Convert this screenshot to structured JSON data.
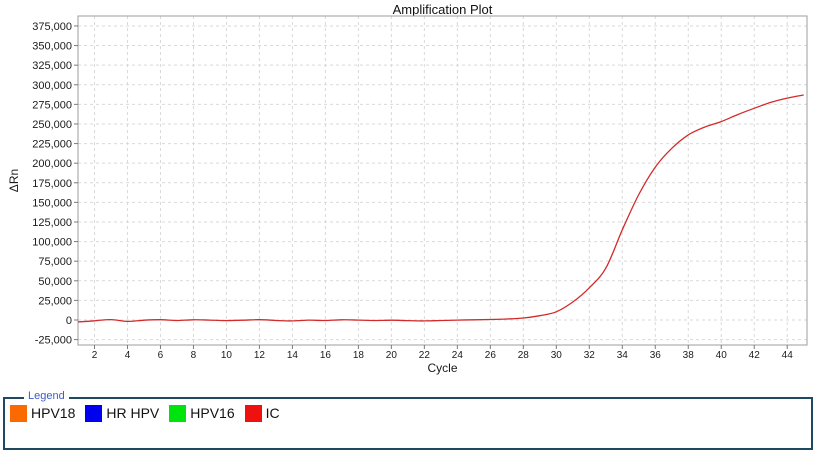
{
  "chart": {
    "title": "Amplification Plot"
  },
  "chart_data": {
    "type": "line",
    "title": "Amplification Plot",
    "xlabel": "Cycle",
    "ylabel": "ΔRn",
    "xlim": [
      1,
      45.2
    ],
    "ylim": [
      -31900,
      387700
    ],
    "x_ticks": [
      2,
      4,
      6,
      8,
      10,
      12,
      14,
      16,
      18,
      20,
      22,
      24,
      26,
      28,
      30,
      32,
      34,
      36,
      38,
      40,
      42,
      44
    ],
    "y_ticks": [
      375000,
      350000,
      325000,
      300000,
      275000,
      250000,
      225000,
      200000,
      175000,
      150000,
      125000,
      100000,
      75000,
      50000,
      25000,
      0,
      -25000
    ],
    "grid": true,
    "legend_position": "bottom",
    "series": [
      {
        "name": "IC",
        "color": "#d32a2a",
        "x": [
          1,
          2,
          3,
          4,
          5,
          6,
          7,
          8,
          9,
          10,
          11,
          12,
          13,
          14,
          15,
          16,
          17,
          18,
          19,
          20,
          21,
          22,
          23,
          24,
          25,
          26,
          27,
          28,
          29,
          30,
          31,
          32,
          33,
          34,
          35,
          36,
          37,
          38,
          39,
          40,
          41,
          42,
          43,
          44,
          45
        ],
        "y": [
          -2500,
          -1000,
          500,
          -1800,
          -300,
          400,
          -700,
          300,
          -200,
          -800,
          -300,
          400,
          -600,
          -1200,
          -200,
          -700,
          300,
          -200,
          -700,
          -300,
          -800,
          -1200,
          -600,
          -100,
          300,
          600,
          1200,
          2500,
          5500,
          10500,
          23000,
          41000,
          66000,
          115000,
          160000,
          195000,
          219000,
          236000,
          246000,
          253000,
          262000,
          270000,
          277500,
          283000,
          287000
        ]
      }
    ],
    "colors": {
      "grid": "#d9d9d9",
      "plot_border": "#9e9e9e",
      "tick": "#7a7a7a",
      "text": "#1a1a1a",
      "background": "#ffffff"
    }
  },
  "legend": {
    "caption": "Legend",
    "border_color": "#1e4960",
    "items": [
      {
        "label": "HPV18",
        "color": "#fa6a00"
      },
      {
        "label": "HR HPV",
        "color": "#0000f0"
      },
      {
        "label": "HPV16",
        "color": "#00e40e"
      },
      {
        "label": "IC",
        "color": "#ef1010"
      }
    ]
  }
}
